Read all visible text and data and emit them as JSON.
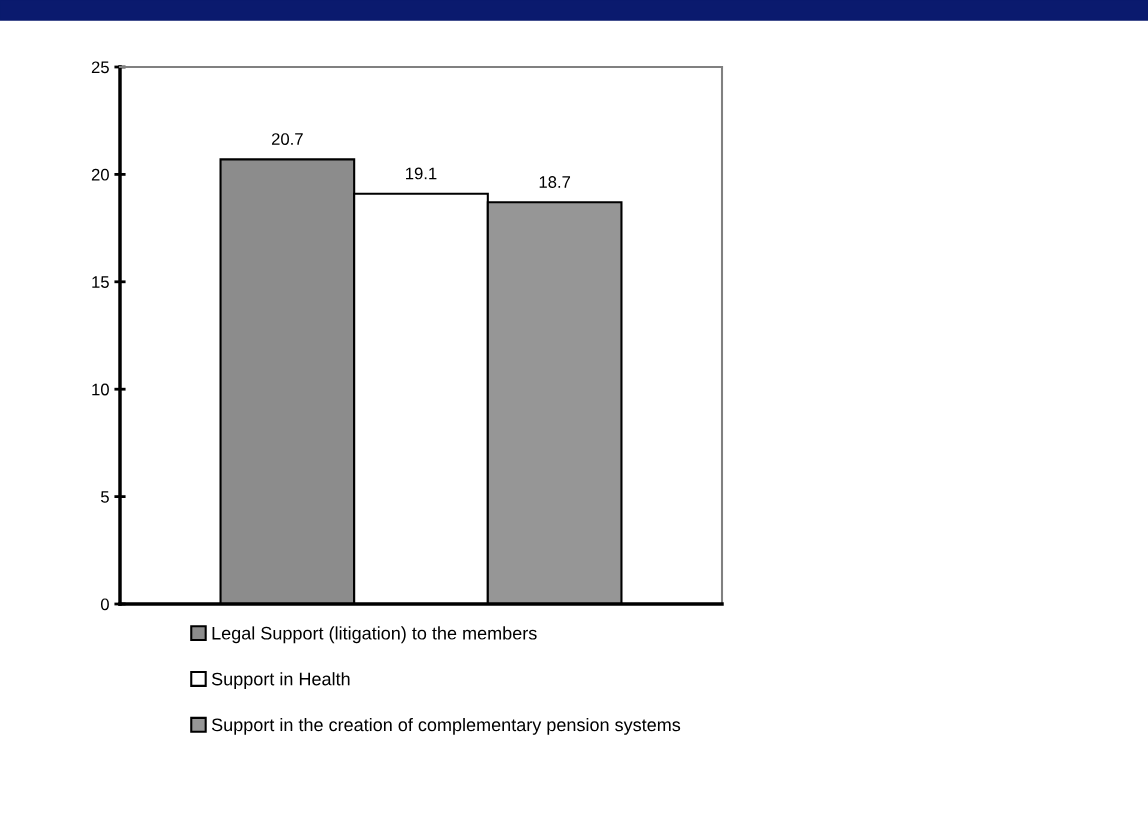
{
  "chart_data": {
    "type": "bar",
    "categories": [
      null
    ],
    "series": [
      {
        "name": "Legal Support (litigation) to the members",
        "color": "#8c8c8c",
        "values": [
          20.7
        ]
      },
      {
        "name": "Support in Health",
        "color": "#ffffff",
        "values": [
          19.1
        ]
      },
      {
        "name": "Support in the creation of complementary pension systems",
        "color": "#969696",
        "values": [
          18.7
        ]
      }
    ],
    "ylim": [
      0,
      25
    ],
    "yticks": [
      0,
      5,
      10,
      15,
      20,
      25
    ],
    "data_labels": true,
    "grid": false,
    "legend": "bottom"
  }
}
